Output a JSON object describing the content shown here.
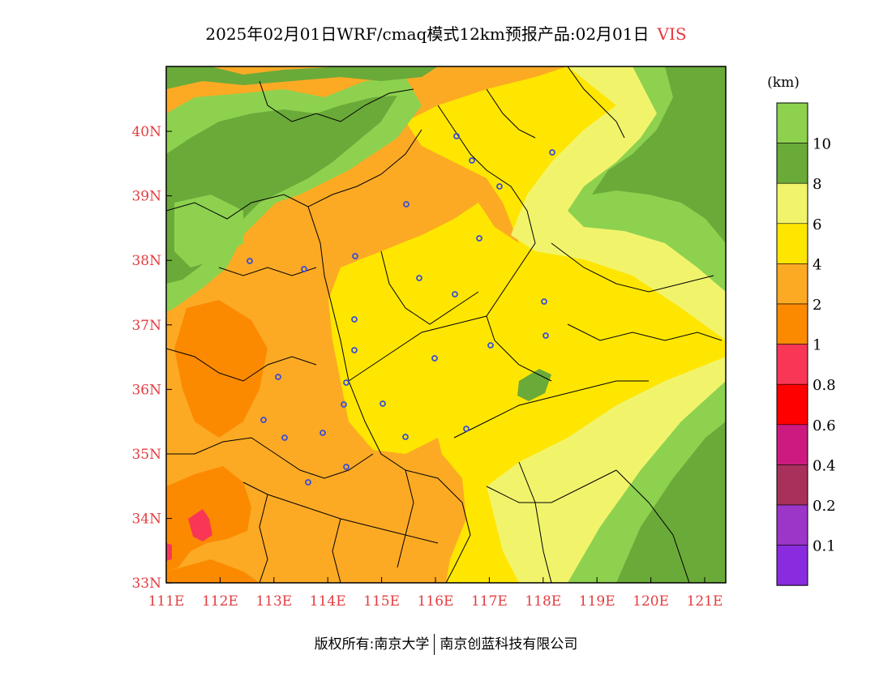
{
  "title": {
    "text": "2025年02月01日WRF/cmaq模式12km预报产品:02月01日",
    "variable": "VIS"
  },
  "axes": {
    "x_ticks": [
      "111E",
      "112E",
      "113E",
      "114E",
      "115E",
      "116E",
      "117E",
      "118E",
      "119E",
      "120E",
      "121E"
    ],
    "y_ticks": [
      "40N",
      "39N",
      "38N",
      "37N",
      "36N",
      "35N",
      "34N",
      "33N"
    ]
  },
  "colorbar": {
    "unit": "(km)",
    "levels": [
      {
        "label": "",
        "color": "#8dd14f"
      },
      {
        "label": "10",
        "color": "#6aaa39"
      },
      {
        "label": "8",
        "color": "#f1f46b"
      },
      {
        "label": "6",
        "color": "#ffe600"
      },
      {
        "label": "4",
        "color": "#fcaa24"
      },
      {
        "label": "2",
        "color": "#fc8a00"
      },
      {
        "label": "1",
        "color": "#fa3656"
      },
      {
        "label": "0.8",
        "color": "#ff0000"
      },
      {
        "label": "0.6",
        "color": "#cc1a80"
      },
      {
        "label": "0.4",
        "color": "#a9305b"
      },
      {
        "label": "0.2",
        "color": "#9b36c8"
      },
      {
        "label": "0.1",
        "color": "#8a2bdf"
      }
    ]
  },
  "footer": {
    "left": "版权所有:南京大学",
    "right": "南京创蓝科技有限公司"
  }
}
